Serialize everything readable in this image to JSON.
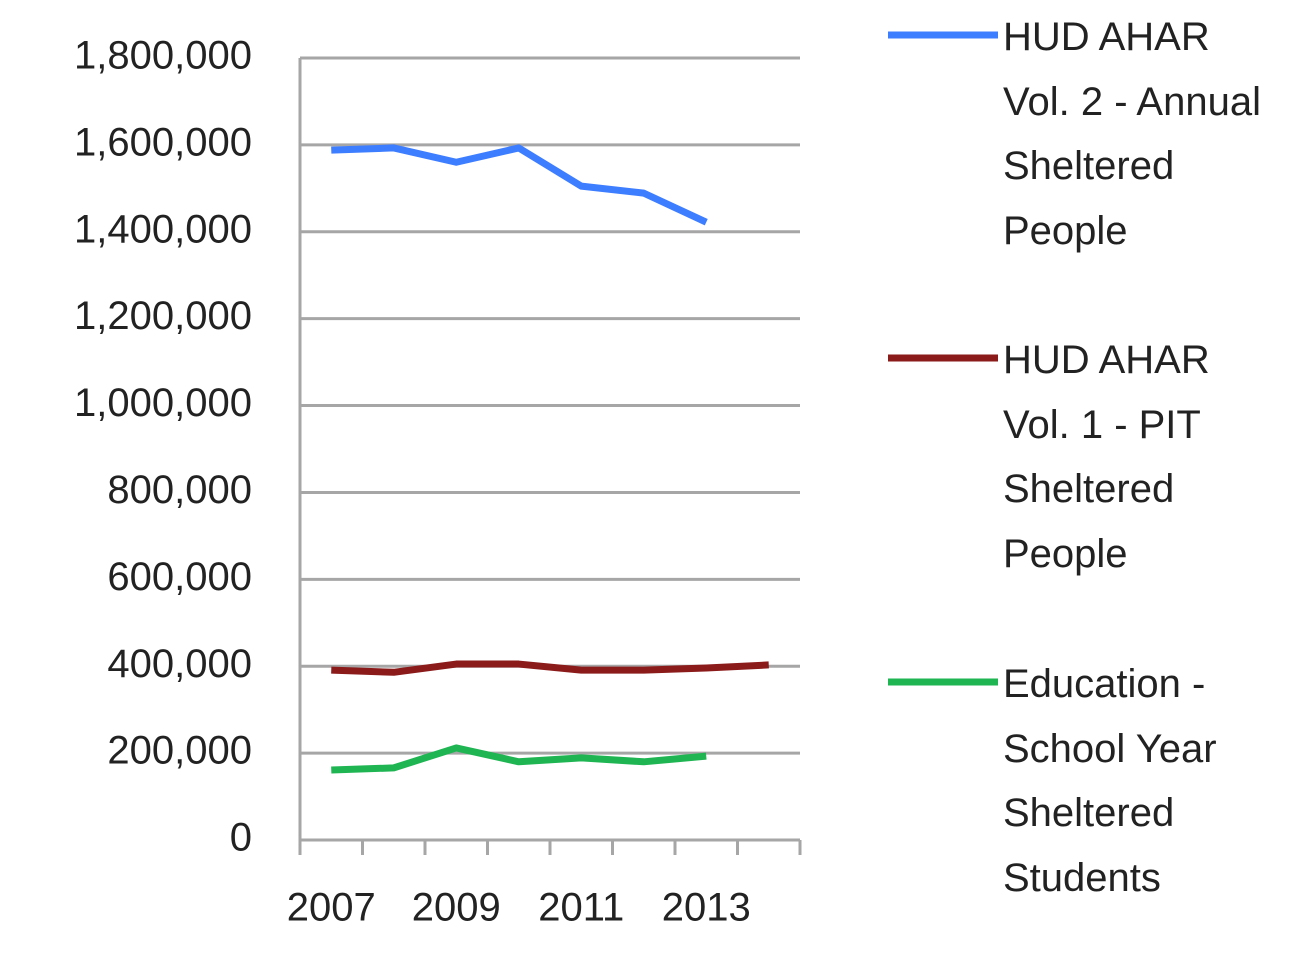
{
  "chart_data": {
    "type": "line",
    "categories": [
      "2007",
      null,
      "2009",
      null,
      "2011",
      null,
      "2013",
      null
    ],
    "series": [
      {
        "name": "HUD AHAR Vol. 2 - Annual Sheltered People",
        "color": "#3d7dff",
        "values": [
          1588000,
          1593000,
          1560000,
          1593000,
          1505000,
          1489000,
          1422000,
          null
        ]
      },
      {
        "name": "HUD AHAR Vol. 1 - PIT Sheltered People",
        "color": "#8b1a1a",
        "values": [
          391000,
          386000,
          405000,
          405000,
          391000,
          391000,
          396000,
          403000
        ]
      },
      {
        "name": "Education - School Year Sheltered Students",
        "color": "#1fb553",
        "values": [
          161000,
          166000,
          212000,
          180000,
          189000,
          180000,
          193000,
          null
        ]
      }
    ],
    "ylim": [
      0,
      1800000
    ],
    "yticks": [
      0,
      {
        "value": 200000,
        "label": "200,000"
      },
      {
        "value": 400000,
        "label": "400,000"
      },
      {
        "value": 600000,
        "label": "600,000"
      },
      {
        "value": 800000,
        "label": "800,000"
      },
      {
        "value": 1000000,
        "label": "1,000,000"
      },
      {
        "value": 1200000,
        "label": "1,200,000"
      },
      {
        "value": 1400000,
        "label": "1,400,000"
      },
      {
        "value": 1600000,
        "label": "1,600,000"
      },
      {
        "value": 1800000,
        "label": "1,800,000"
      }
    ],
    "grid": true,
    "legend": "right"
  }
}
